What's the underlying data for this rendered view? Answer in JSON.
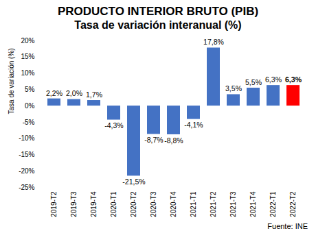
{
  "chart_data": {
    "type": "bar",
    "title": "PRODUCTO INTERIOR BRUTO (PIB)",
    "subtitle": "Tasa de variación interanual (%)",
    "y_label": "Tasa de variación (%)",
    "source": "Fuente: INE",
    "categories": [
      "2019-T2",
      "2019-T3",
      "2019-T4",
      "2020-T1",
      "2020-T2",
      "2020-T3",
      "2020-T4",
      "2021-T1",
      "2021-T2",
      "2021-T3",
      "2021-T4",
      "2022-T1",
      "2022-T2"
    ],
    "values": [
      2.2,
      2.0,
      1.7,
      -4.3,
      -21.5,
      -8.7,
      -8.8,
      -4.1,
      17.8,
      3.5,
      5.5,
      6.3,
      6.3
    ],
    "value_labels": [
      "2,2%",
      "2,0%",
      "1,7%",
      "-4,3%",
      "-21,5%",
      "-8,7%",
      "-8,8%",
      "-4,1%",
      "17,8%",
      "3,5%",
      "5,5%",
      "6,3%",
      "6,3%"
    ],
    "colors": [
      "#4472c4",
      "#4472c4",
      "#4472c4",
      "#4472c4",
      "#4472c4",
      "#4472c4",
      "#4472c4",
      "#4472c4",
      "#4472c4",
      "#4472c4",
      "#4472c4",
      "#4472c4",
      "#ff0000"
    ],
    "ylim": [
      -25,
      20
    ],
    "yticks": [
      {
        "value": -25,
        "label": "-25%"
      },
      {
        "value": -20,
        "label": "-20%"
      },
      {
        "value": -15,
        "label": "-15%"
      },
      {
        "value": -10,
        "label": "-10%"
      },
      {
        "value": -5,
        "label": "-5%"
      },
      {
        "value": 0,
        "label": "0%"
      },
      {
        "value": 5,
        "label": "5%"
      },
      {
        "value": 10,
        "label": "10%"
      },
      {
        "value": 15,
        "label": "15%"
      },
      {
        "value": 20,
        "label": "20%"
      }
    ],
    "grid": false,
    "data_labels": true
  }
}
